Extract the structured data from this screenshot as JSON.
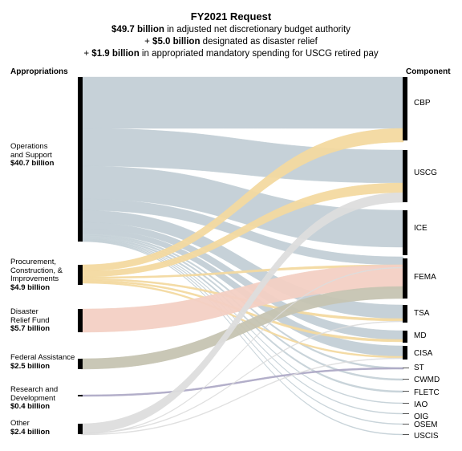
{
  "header": {
    "title": "FY2021 Request",
    "line1_bold": "$49.7 billion",
    "line1_rest": " in adjusted net discretionary budget authority",
    "line2_pre": "+ ",
    "line2_bold": "$5.0 billion",
    "line2_rest": " designated as disaster relief",
    "line3_pre": "+ ",
    "line3_bold": "$1.9 billion",
    "line3_rest": " in appropriated mandatory spending for USCG retired pay"
  },
  "columns": {
    "left": "Appropriations",
    "right": "Component"
  },
  "appropriations": [
    {
      "id": "ops",
      "name": "Operations\nand Support",
      "amount": "$40.7 billion",
      "color": "#c3cfd6"
    },
    {
      "id": "pci",
      "name": "Procurement,\nConstruction, &\nImprovements",
      "amount": "$4.9 billion",
      "color": "#f3d9a0"
    },
    {
      "id": "drf",
      "name": "Disaster\nRelief Fund",
      "amount": "$5.7 billion",
      "color": "#f3d0c4"
    },
    {
      "id": "fa",
      "name": "Federal Assistance",
      "amount": "$2.5 billion",
      "color": "#c6c4b2"
    },
    {
      "id": "rd",
      "name": "Research and\nDevelopment",
      "amount": "$0.4 billion",
      "color": "#aeaac6"
    },
    {
      "id": "other",
      "name": "Other",
      "amount": "$2.4 billion",
      "color": "#dddddd"
    }
  ],
  "components": [
    "CBP",
    "USCG",
    "ICE",
    "FEMA",
    "TSA",
    "MD",
    "CISA",
    "ST",
    "CWMD",
    "FLETC",
    "IAO",
    "OIG",
    "OSEM",
    "USCIS"
  ],
  "colors": {
    "node": "#000000"
  }
}
